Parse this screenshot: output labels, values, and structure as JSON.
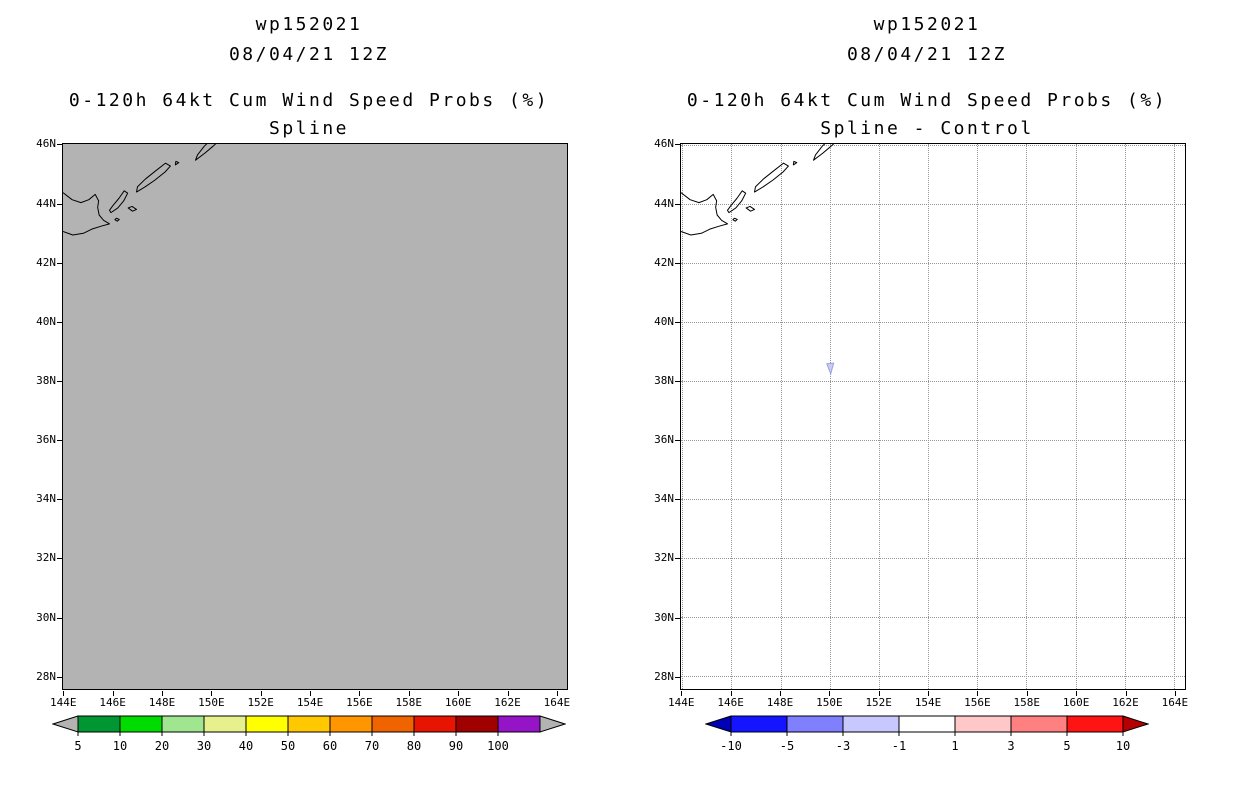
{
  "panels": [
    {
      "title_line1": "wp152021",
      "title_line2": "08/04/21 12Z",
      "subtitle_line1": "0-120h 64kt Cum Wind Speed Probs (%)",
      "subtitle_line2": "Spline",
      "map": {
        "background": "#b3b3b3",
        "show_grid": false,
        "marker": null
      },
      "colorbar": {
        "labels": [
          "5",
          "10",
          "20",
          "30",
          "40",
          "50",
          "60",
          "70",
          "80",
          "90",
          "100"
        ],
        "segment_colors": [
          "#009632",
          "#00dc00",
          "#a0e690",
          "#e6f08c",
          "#ffff00",
          "#ffc800",
          "#ff9600",
          "#f06400",
          "#e61400",
          "#a00000",
          "#9614c8"
        ],
        "arrow_left_color": "#b3b3b3",
        "arrow_right_color": "#b3b3b3"
      }
    },
    {
      "title_line1": "wp152021",
      "title_line2": "08/04/21 12Z",
      "subtitle_line1": "0-120h 64kt Cum Wind Speed Probs (%)",
      "subtitle_line2": "Spline - Control",
      "map": {
        "background": "#ffffff",
        "show_grid": true,
        "marker": {
          "lon": 150.0,
          "lat": 38.45,
          "color": "#c8ccf2",
          "edge": "#9aa0e0"
        }
      },
      "colorbar": {
        "labels": [
          "-10",
          "-5",
          "-3",
          "-1",
          "1",
          "3",
          "5",
          "10"
        ],
        "segment_colors": [
          "#1414ff",
          "#8080ff",
          "#c8c8ff",
          "#ffffff",
          "#ffc8c8",
          "#ff8080",
          "#ff1414"
        ],
        "arrow_left_color": "#0000b4",
        "arrow_right_color": "#b40000"
      }
    }
  ],
  "map_axes": {
    "lon_range": [
      143.95,
      164.45
    ],
    "lat_range": [
      27.55,
      46.05
    ],
    "lat_ticks": [
      {
        "label": "46N",
        "value": 46
      },
      {
        "label": "44N",
        "value": 44
      },
      {
        "label": "42N",
        "value": 42
      },
      {
        "label": "40N",
        "value": 40
      },
      {
        "label": "38N",
        "value": 38
      },
      {
        "label": "36N",
        "value": 36
      },
      {
        "label": "34N",
        "value": 34
      },
      {
        "label": "32N",
        "value": 32
      },
      {
        "label": "30N",
        "value": 30
      },
      {
        "label": "28N",
        "value": 28
      }
    ],
    "lon_ticks": [
      {
        "label": "144E",
        "value": 144
      },
      {
        "label": "146E",
        "value": 146
      },
      {
        "label": "148E",
        "value": 148
      },
      {
        "label": "150E",
        "value": 150
      },
      {
        "label": "152E",
        "value": 152
      },
      {
        "label": "154E",
        "value": 154
      },
      {
        "label": "156E",
        "value": 156
      },
      {
        "label": "158E",
        "value": 158
      },
      {
        "label": "160E",
        "value": 160
      },
      {
        "label": "162E",
        "value": 162
      },
      {
        "label": "164E",
        "value": 164
      }
    ]
  },
  "geo": {
    "coastline_paths": [
      "M 143.95 -43.08 L 144.35 -42.96 L 144.78 -43.02 L 145.12 -43.16 L 145.5 -43.26 L 145.84 -43.34 L 145.6 -43.46 L 145.42 -43.64 L 145.36 -43.9 L 145.4 -44.12 L 145.26 -44.34 L 145.0 -44.16 L 144.68 -44.06 L 144.32 -44.16 L 143.95 -44.4",
      "M 146.06 -43.48 L 146.16 -43.43 L 146.24 -43.49 L 146.12 -43.53 Z",
      "M 146.6 -43.88 L 146.78 -43.77 L 146.94 -43.83 L 146.76 -43.93 Z",
      "M 145.9 -43.72 L 146.18 -43.88 L 146.42 -44.12 L 146.58 -44.38 L 146.44 -44.46 L 146.22 -44.2 L 145.98 -43.96 L 145.84 -43.8 Z",
      "M 146.94 -44.42 L 147.3 -44.6 L 147.68 -44.82 L 148.1 -45.1 L 148.32 -45.3 L 148.12 -45.4 L 147.72 -45.14 L 147.3 -44.86 L 146.98 -44.6 Z",
      "M 148.52 -45.34 L 148.66 -45.42 L 148.54 -45.46 Z",
      "M 149.34 -45.5 L 149.72 -45.74 L 150.06 -45.98 L 150.34 -46.2 L 150.06 -46.26 L 149.7 -45.98 L 149.42 -45.68 Z"
    ]
  },
  "chart_data": [
    {
      "type": "heatmap",
      "title": "wp152021",
      "subtitle": "08/04/21 12Z",
      "variable": "0-120h 64kt Cum Wind Speed Probs (%)",
      "variant": "Spline",
      "x_ticks": [
        "144E",
        "146E",
        "148E",
        "150E",
        "152E",
        "154E",
        "156E",
        "158E",
        "160E",
        "162E",
        "164E"
      ],
      "y_ticks": [
        "46N",
        "44N",
        "42N",
        "40N",
        "38N",
        "36N",
        "34N",
        "32N",
        "30N",
        "28N"
      ],
      "x_range_deg_east": [
        144,
        164
      ],
      "y_range_deg_north": [
        28,
        46
      ],
      "grid": false,
      "legend_position": "bottom",
      "colorbar_ticks": [
        5,
        10,
        20,
        30,
        40,
        50,
        60,
        70,
        80,
        90,
        100
      ],
      "values_summary": "entire domain shaded uniform gray, i.e. probability below 5% everywhere"
    },
    {
      "type": "heatmap",
      "title": "wp152021",
      "subtitle": "08/04/21 12Z",
      "variable": "0-120h 64kt Cum Wind Speed Probs (%)",
      "variant": "Spline - Control",
      "x_ticks": [
        "144E",
        "146E",
        "148E",
        "150E",
        "152E",
        "154E",
        "156E",
        "158E",
        "160E",
        "162E",
        "164E"
      ],
      "y_ticks": [
        "46N",
        "44N",
        "42N",
        "40N",
        "38N",
        "36N",
        "34N",
        "32N",
        "30N",
        "28N"
      ],
      "x_range_deg_east": [
        144,
        164
      ],
      "y_range_deg_north": [
        28,
        46
      ],
      "grid": true,
      "legend_position": "bottom",
      "colorbar_ticks": [
        -10,
        -5,
        -3,
        -1,
        1,
        3,
        5,
        10
      ],
      "values_summary": "difference near zero (white) everywhere except a small -3 to -1 patch near 150E, 38.5N"
    }
  ]
}
